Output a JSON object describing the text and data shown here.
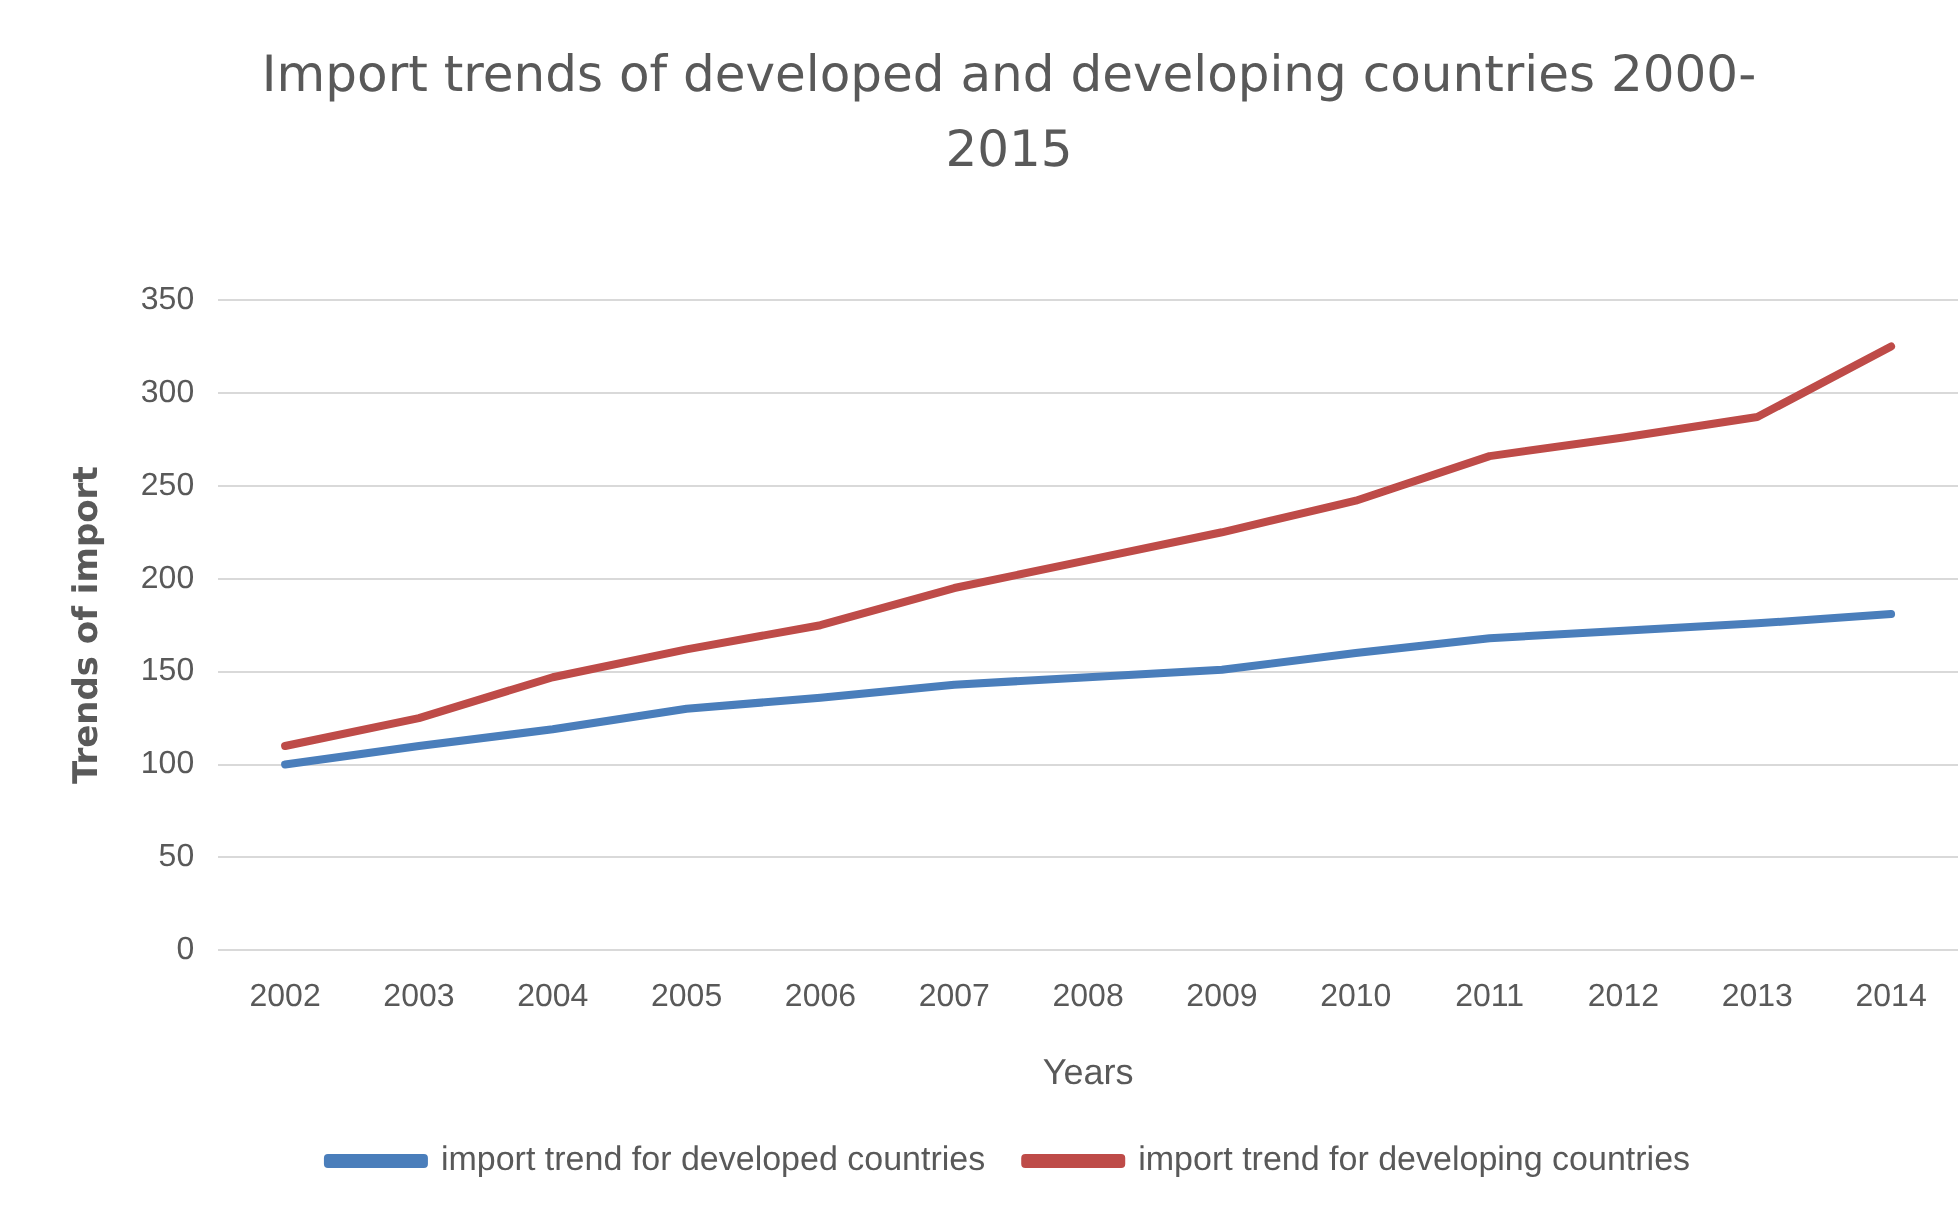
{
  "chart_data": {
    "type": "line",
    "title": "Import trends of developed and developing countries 2000-2015",
    "xlabel": "Years",
    "ylabel": "Trends of import",
    "categories": [
      "2002",
      "2003",
      "2004",
      "2005",
      "2006",
      "2007",
      "2008",
      "2009",
      "2010",
      "2011",
      "2012",
      "2013",
      "2014"
    ],
    "series": [
      {
        "name": "import trend for developed countries",
        "color": "#4a7ebb",
        "values": [
          100,
          110,
          119,
          130,
          136,
          143,
          147,
          151,
          160,
          168,
          172,
          176,
          181
        ]
      },
      {
        "name": "import trend for developing countries",
        "color": "#be4b48",
        "values": [
          110,
          125,
          147,
          162,
          175,
          195,
          210,
          225,
          242,
          266,
          276,
          287,
          325
        ]
      }
    ],
    "ylim": [
      0,
      350
    ],
    "yticks": [
      0,
      50,
      100,
      150,
      200,
      250,
      300,
      350
    ],
    "grid": "y",
    "legend": "bottom",
    "marker": "none",
    "line_style": "solid"
  }
}
